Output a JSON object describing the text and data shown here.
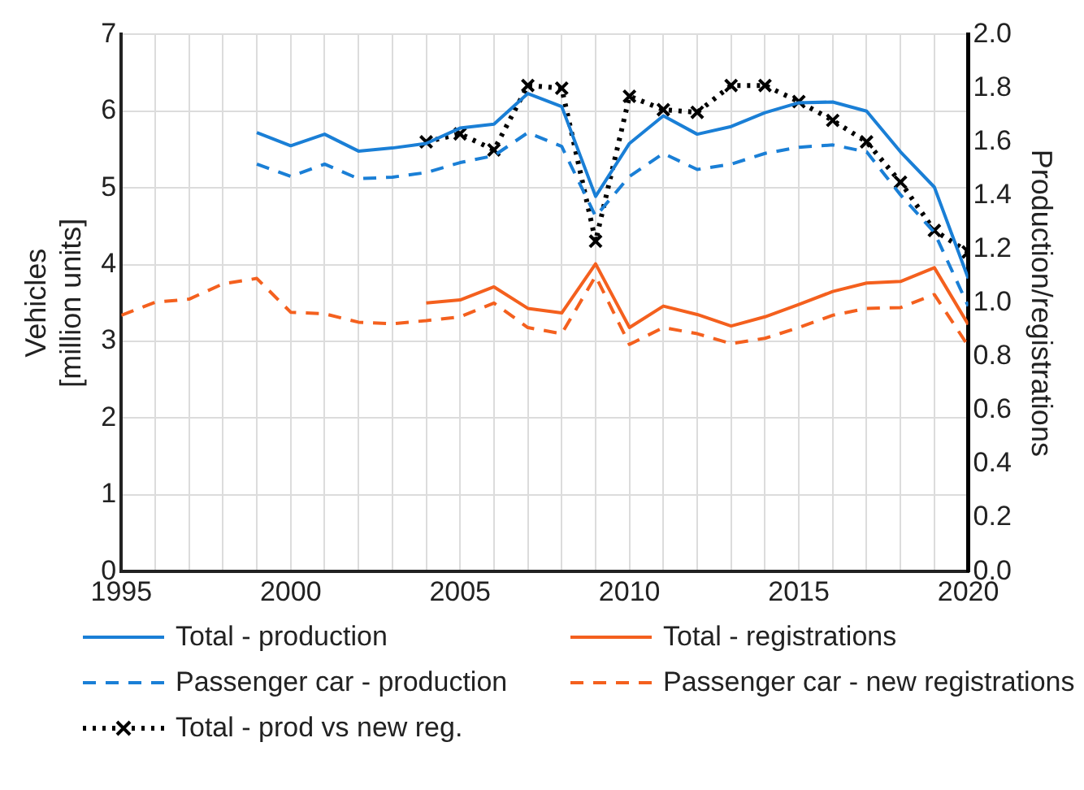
{
  "chart_data": {
    "type": "line",
    "ylabel": "Vehicles\n[million units]",
    "y2label": "Production/registrations",
    "x": [
      1995,
      1996,
      1997,
      1998,
      1999,
      2000,
      2001,
      2002,
      2003,
      2004,
      2005,
      2006,
      2007,
      2008,
      2009,
      2010,
      2011,
      2012,
      2013,
      2014,
      2015,
      2016,
      2017,
      2018,
      2019,
      2020
    ],
    "series": [
      {
        "name": "Total - production",
        "color": "#1a7fd6",
        "line_style": "solid",
        "marker": "none",
        "values": [
          null,
          null,
          null,
          null,
          5.72,
          5.55,
          5.7,
          5.48,
          5.52,
          5.58,
          5.78,
          5.83,
          6.23,
          6.06,
          4.89,
          5.58,
          5.94,
          5.7,
          5.8,
          5.98,
          6.11,
          6.12,
          6.0,
          5.47,
          5.01,
          3.82
        ]
      },
      {
        "name": "Total - registrations",
        "color": "#f4601e",
        "line_style": "solid",
        "marker": "none",
        "values": [
          null,
          null,
          null,
          null,
          null,
          null,
          null,
          null,
          null,
          3.5,
          3.54,
          3.71,
          3.43,
          3.37,
          4.01,
          3.18,
          3.46,
          3.35,
          3.2,
          3.32,
          3.48,
          3.65,
          3.76,
          3.78,
          3.96,
          3.22
        ]
      },
      {
        "name": "Passenger car - production",
        "color": "#1a7fd6",
        "line_style": "dashed",
        "marker": "none",
        "values": [
          null,
          null,
          null,
          null,
          5.31,
          5.15,
          5.31,
          5.12,
          5.14,
          5.2,
          5.33,
          5.42,
          5.72,
          5.54,
          4.63,
          5.15,
          5.45,
          5.24,
          5.31,
          5.45,
          5.53,
          5.56,
          5.47,
          4.91,
          4.42,
          3.46
        ]
      },
      {
        "name": "Passenger car - new registrations",
        "color": "#f4601e",
        "line_style": "dashed",
        "marker": "none",
        "values": [
          3.34,
          3.51,
          3.55,
          3.75,
          3.82,
          3.38,
          3.36,
          3.25,
          3.23,
          3.27,
          3.32,
          3.5,
          3.18,
          3.1,
          3.85,
          2.96,
          3.18,
          3.1,
          2.97,
          3.04,
          3.18,
          3.34,
          3.43,
          3.44,
          3.61,
          2.94
        ]
      },
      {
        "name": "Total - prod vs new reg.",
        "color": "#000000",
        "line_style": "dotted",
        "marker": "cross",
        "axis": "y2",
        "values": [
          null,
          null,
          null,
          null,
          null,
          null,
          null,
          null,
          null,
          1.6,
          1.63,
          1.57,
          1.81,
          1.8,
          1.23,
          1.77,
          1.72,
          1.71,
          1.81,
          1.81,
          1.75,
          1.68,
          1.6,
          1.45,
          1.27,
          1.19
        ]
      }
    ],
    "xlim": [
      1995,
      2020
    ],
    "xticks": [
      1995,
      {
        "value": 1996,
        "label": null
      },
      {
        "value": 1997,
        "label": null
      },
      {
        "value": 1998,
        "label": null
      },
      {
        "value": 1999,
        "label": null
      },
      2000,
      {
        "value": 2001,
        "label": null
      },
      {
        "value": 2002,
        "label": null
      },
      {
        "value": 2003,
        "label": null
      },
      {
        "value": 2004,
        "label": null
      },
      2005,
      {
        "value": 2006,
        "label": null
      },
      {
        "value": 2007,
        "label": null
      },
      {
        "value": 2008,
        "label": null
      },
      {
        "value": 2009,
        "label": null
      },
      2010,
      {
        "value": 2011,
        "label": null
      },
      {
        "value": 2012,
        "label": null
      },
      {
        "value": 2013,
        "label": null
      },
      {
        "value": 2014,
        "label": null
      },
      2015,
      {
        "value": 2016,
        "label": null
      },
      {
        "value": 2017,
        "label": null
      },
      {
        "value": 2018,
        "label": null
      },
      {
        "value": 2019,
        "label": null
      },
      2020
    ],
    "ylim": [
      0,
      7
    ],
    "yticks": [
      0,
      1,
      2,
      3,
      4,
      5,
      6,
      7
    ],
    "y2lim": [
      0,
      2
    ],
    "y2ticks": [
      {
        "value": 0,
        "label": "0.0"
      },
      {
        "value": 0.2,
        "label": "0.2"
      },
      {
        "value": 0.4,
        "label": "0.4"
      },
      {
        "value": 0.6,
        "label": "0.6"
      },
      {
        "value": 0.8,
        "label": "0.8"
      },
      {
        "value": 1,
        "label": "1.0"
      },
      {
        "value": 1.2,
        "label": "1.2"
      },
      {
        "value": 1.4,
        "label": "1.4"
      },
      {
        "value": 1.6,
        "label": "1.6"
      },
      {
        "value": 1.8,
        "label": "1.8"
      },
      {
        "value": 2,
        "label": "2.0"
      }
    ],
    "grid": true,
    "legend": "bottom"
  }
}
